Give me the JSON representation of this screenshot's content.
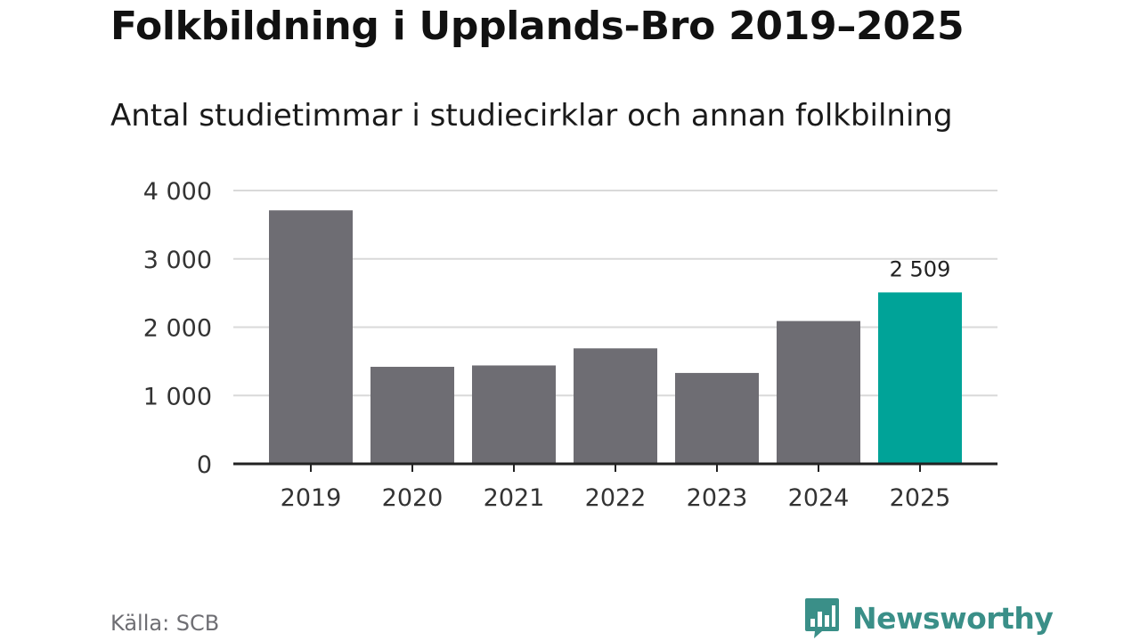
{
  "header": {
    "title": "Folkbildning i Upplands-Bro 2019–2025",
    "subtitle": "Antal studietimmar i studiecirklar och annan folkbilning"
  },
  "footer": {
    "source": "Källa: SCB",
    "brand": "Newsworthy",
    "brand_icon": "bar-chart-speech-bubble-icon"
  },
  "colors": {
    "bar_default": "#6e6d73",
    "bar_highlight": "#00a398",
    "gridline": "#d9d9d9",
    "baseline": "#222222",
    "brand": "#3a8f88"
  },
  "chart_data": {
    "type": "bar",
    "categories": [
      "2019",
      "2020",
      "2021",
      "2022",
      "2023",
      "2024",
      "2025"
    ],
    "values": [
      3710,
      1420,
      1440,
      1690,
      1330,
      2090,
      2509
    ],
    "highlight_index": 6,
    "data_labels": {
      "6": "2 509"
    },
    "ylim": [
      0,
      4000
    ],
    "yticks": [
      0,
      1000,
      2000,
      3000,
      4000
    ],
    "ytick_labels": [
      "0",
      "1 000",
      "2 000",
      "3 000",
      "4 000"
    ],
    "grid": true,
    "xlabel": "",
    "ylabel": ""
  }
}
